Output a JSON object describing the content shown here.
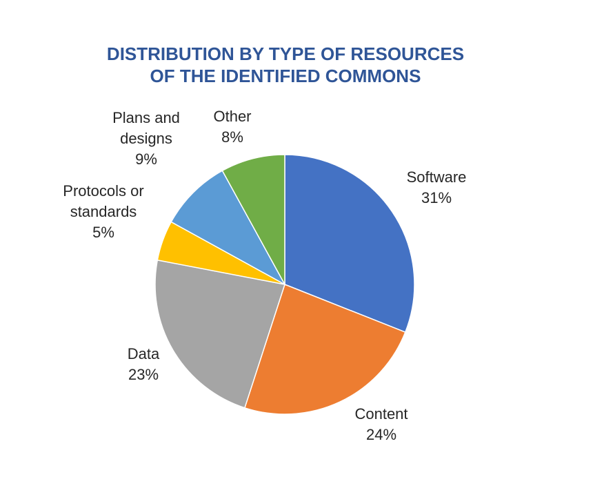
{
  "chart_data": {
    "type": "pie",
    "title": [
      "DISTRIBUTION BY TYPE OF RESOURCES",
      "OF THE IDENTIFIED COMMONS"
    ],
    "slices": [
      {
        "name": "Software",
        "label": [
          "Software"
        ],
        "value": 31,
        "display": "31%",
        "color": "#4472C4"
      },
      {
        "name": "Content",
        "label": [
          "Content"
        ],
        "value": 24,
        "display": "24%",
        "color": "#ED7D31"
      },
      {
        "name": "Data",
        "label": [
          "Data"
        ],
        "value": 23,
        "display": "23%",
        "color": "#A5A5A5"
      },
      {
        "name": "Protocols or standards",
        "label": [
          "Protocols or",
          "standards"
        ],
        "value": 5,
        "display": "5%",
        "color": "#FFC000"
      },
      {
        "name": "Plans and designs",
        "label": [
          "Plans and",
          "designs"
        ],
        "value": 9,
        "display": "9%",
        "color": "#5B9BD5"
      },
      {
        "name": "Other",
        "label": [
          "Other"
        ],
        "value": 8,
        "display": "8%",
        "color": "#70AD47"
      }
    ],
    "start": "12 o'clock",
    "direction": "clockwise",
    "legend": "none (labels outside slices)"
  },
  "colors": {
    "title": "#2F5597",
    "label_text": "#262626"
  }
}
